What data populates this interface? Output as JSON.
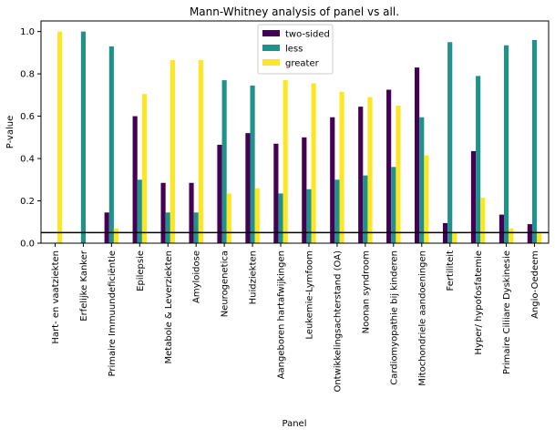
{
  "chart_data": {
    "type": "bar",
    "title": "Mann-Whitney analysis of panel vs all.",
    "xlabel": "Panel",
    "ylabel": "P-value",
    "ylim": [
      0,
      1.05
    ],
    "yticks": [
      "0.0",
      "0.2",
      "0.4",
      "0.6",
      "0.8",
      "1.0"
    ],
    "ytick_values": [
      0.0,
      0.2,
      0.4,
      0.6,
      0.8,
      1.0
    ],
    "legend_position": "top-center",
    "threshold_line": 0.05,
    "categories": [
      "Hart- en vaatziekten",
      "Erfelijke Kanker",
      "Primaire Immuundeficiëntie",
      "Epilepsie",
      "Metabole & Leverziekten",
      "Amyloidose",
      "Neurogenetica",
      "Huidziekten",
      "Aangeboren hartafwijkingen",
      "Leukemie-Lymfoom",
      "Ontwikkelingsachterstand (OA)",
      "Noonan syndroom",
      "Cardiomyopathie bij kinderen",
      "Mitochondriele aandoeningen",
      "Fertiliteit",
      "Hyper/ hypofosfatemie",
      "Primaire Ciliiare Dyskinesie",
      "Angio-Oedeem"
    ],
    "series": [
      {
        "name": "two-sided",
        "color": "#440154",
        "values": [
          0.0,
          0.0,
          0.145,
          0.6,
          0.285,
          0.285,
          0.465,
          0.52,
          0.47,
          0.5,
          0.595,
          0.645,
          0.725,
          0.83,
          0.095,
          0.435,
          0.135,
          0.09
        ]
      },
      {
        "name": "less",
        "color": "#21918c",
        "values": [
          0.0,
          1.0,
          0.93,
          0.3,
          0.145,
          0.145,
          0.77,
          0.745,
          0.235,
          0.255,
          0.3,
          0.32,
          0.36,
          0.595,
          0.95,
          0.79,
          0.935,
          0.96
        ]
      },
      {
        "name": "greater",
        "color": "#fde725",
        "values": [
          1.0,
          0.0,
          0.07,
          0.705,
          0.865,
          0.865,
          0.235,
          0.26,
          0.77,
          0.755,
          0.715,
          0.69,
          0.65,
          0.415,
          0.05,
          0.215,
          0.07,
          0.045
        ]
      }
    ]
  }
}
